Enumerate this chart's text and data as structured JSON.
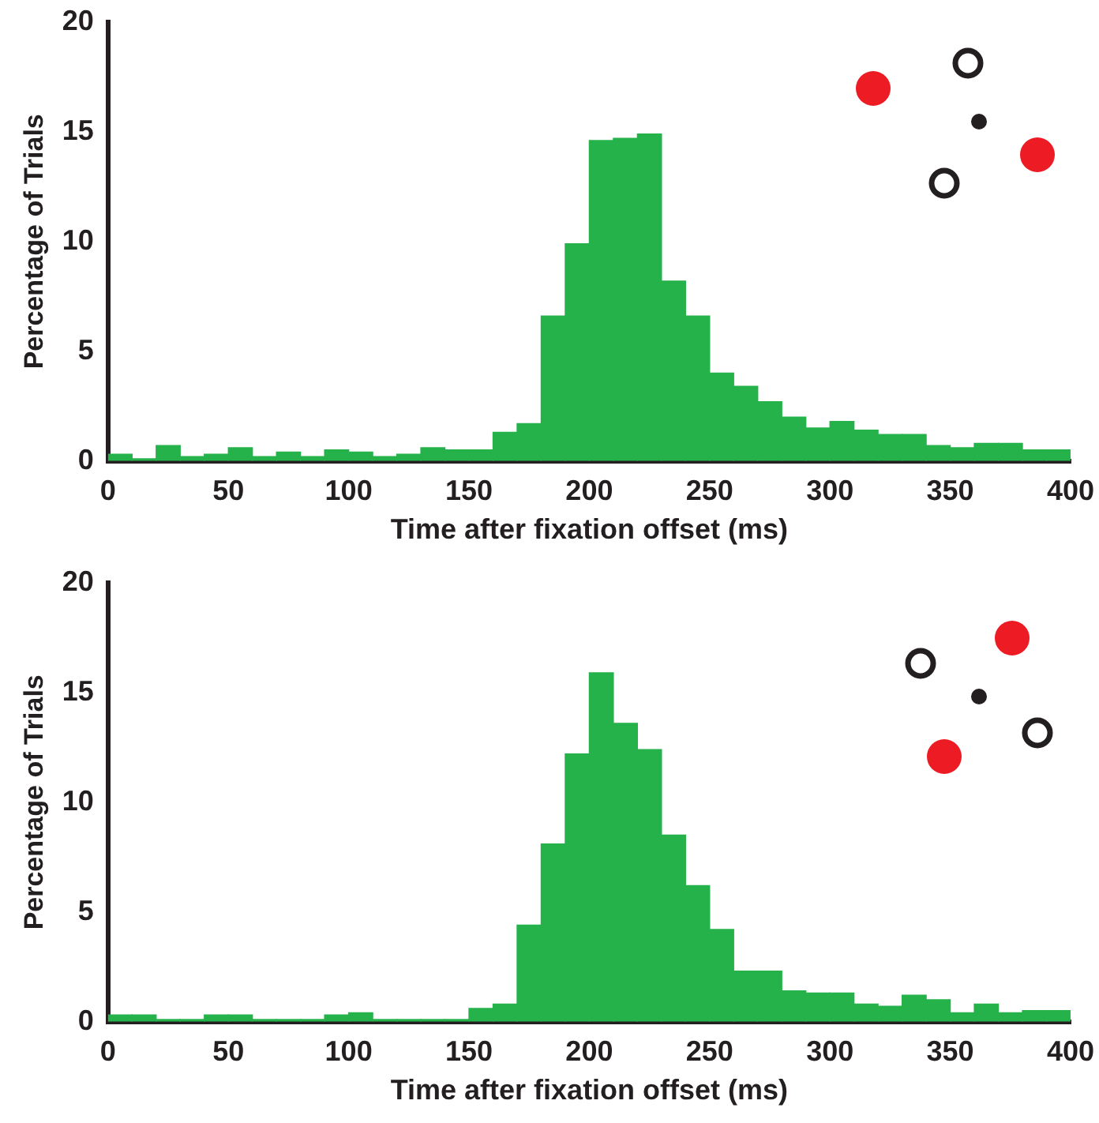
{
  "chart_data": [
    {
      "type": "histogram",
      "xlabel": "Time after fixation offset (ms)",
      "ylabel": "Percentage of Trials",
      "color": "#25b24a",
      "bins": [
        0,
        10,
        20,
        30,
        40,
        50,
        60,
        70,
        80,
        90,
        100,
        110,
        120,
        130,
        140,
        150,
        160,
        170,
        180,
        190,
        200,
        210,
        220,
        230,
        240,
        250,
        260,
        270,
        280,
        290,
        300,
        310,
        320,
        330,
        340,
        350,
        360,
        370,
        380,
        390,
        400
      ],
      "values": [
        0.3,
        0.1,
        0.7,
        0.2,
        0.3,
        0.6,
        0.2,
        0.4,
        0.2,
        0.5,
        0.4,
        0.2,
        0.3,
        0.6,
        0.5,
        0.5,
        1.3,
        1.7,
        6.6,
        9.9,
        14.6,
        14.7,
        14.9,
        8.2,
        6.6,
        4.0,
        3.4,
        2.7,
        2.0,
        1.5,
        1.8,
        1.4,
        1.2,
        1.2,
        0.7,
        0.6,
        0.8,
        0.8,
        0.5,
        0.5
      ],
      "xlim": [
        0,
        400
      ],
      "ylim": [
        0,
        20
      ],
      "xticks": [
        0,
        50,
        100,
        150,
        200,
        250,
        300,
        350,
        400
      ],
      "yticks": [
        0,
        5,
        10,
        15,
        20
      ],
      "grid": false
    },
    {
      "type": "histogram",
      "xlabel": "Time after fixation offset (ms)",
      "ylabel": "Percentage of Trials",
      "color": "#25b24a",
      "bins": [
        0,
        10,
        20,
        30,
        40,
        50,
        60,
        70,
        80,
        90,
        100,
        110,
        120,
        130,
        140,
        150,
        160,
        170,
        180,
        190,
        200,
        210,
        220,
        230,
        240,
        250,
        260,
        270,
        280,
        290,
        300,
        310,
        320,
        330,
        340,
        350,
        360,
        370,
        380,
        390,
        400
      ],
      "values": [
        0.3,
        0.3,
        0.1,
        0.1,
        0.3,
        0.3,
        0.1,
        0.1,
        0.1,
        0.3,
        0.4,
        0.1,
        0.1,
        0.1,
        0.1,
        0.6,
        0.8,
        4.4,
        8.1,
        12.2,
        15.9,
        13.6,
        12.4,
        8.5,
        6.2,
        4.2,
        2.3,
        2.3,
        1.4,
        1.3,
        1.3,
        0.8,
        0.7,
        1.2,
        1.0,
        0.4,
        0.8,
        0.4,
        0.5,
        0.5
      ],
      "xlim": [
        0,
        400
      ],
      "ylim": [
        0,
        20
      ],
      "xticks": [
        0,
        50,
        100,
        150,
        200,
        250,
        300,
        350,
        400
      ],
      "yticks": [
        0,
        5,
        10,
        15,
        20
      ],
      "grid": false
    }
  ]
}
